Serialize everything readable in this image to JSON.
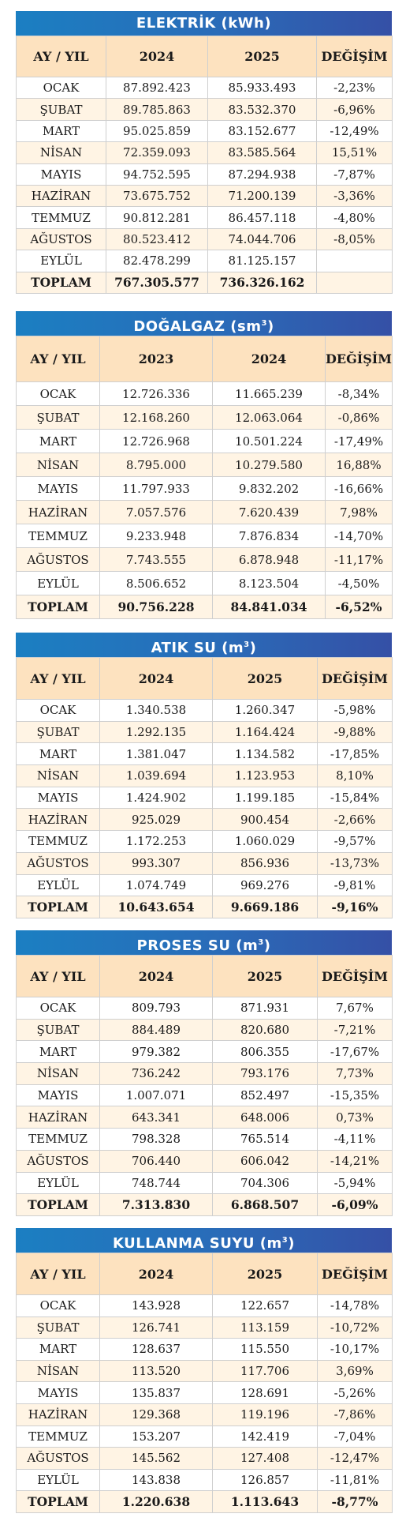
{
  "tables": [
    {
      "title": "ELEKTRİK (kWh)",
      "title_sup": "",
      "header": [
        "AY / YIL",
        "2024",
        "2025",
        "DEĞİŞİM"
      ],
      "rows": [
        [
          "OCAK",
          "87.892.423",
          "85.933.493",
          "-2,23%"
        ],
        [
          "ŞUBAT",
          "89.785.863",
          "83.532.370",
          "-6,96%"
        ],
        [
          "MART",
          "95.025.859",
          "83.152.677",
          "-12,49%"
        ],
        [
          "NİSAN",
          "72.359.093",
          "83.585.564",
          "15,51%"
        ],
        [
          "MAYIS",
          "94.752.595",
          "87.294.938",
          "-7,87%"
        ],
        [
          "HAZİRAN",
          "73.675.752",
          "71.200.139",
          "-3,36%"
        ],
        [
          "TEMMUZ",
          "90.812.281",
          "86.457.118",
          "-4,80%"
        ],
        [
          "AĞUSTOS",
          "80.523.412",
          "74.044.706",
          "-8,05%"
        ],
        [
          "EYLÜL",
          "82.478.299",
          "81.125.157",
          ""
        ]
      ],
      "total": [
        "TOPLAM",
        "767.305.577",
        "736.326.162",
        ""
      ]
    },
    {
      "title": "DOĞALGAZ (sm",
      "title_sup": "3",
      "title_end": ")",
      "header": [
        "AY / YIL",
        "2023",
        "2024",
        "DEĞİŞİM"
      ],
      "rows": [
        [
          "OCAK",
          "12.726.336",
          "11.665.239",
          "-8,34%"
        ],
        [
          "ŞUBAT",
          "12.168.260",
          "12.063.064",
          "-0,86%"
        ],
        [
          "MART",
          "12.726.968",
          "10.501.224",
          "-17,49%"
        ],
        [
          "NİSAN",
          "8.795.000",
          "10.279.580",
          "16,88%"
        ],
        [
          "MAYIS",
          "11.797.933",
          "9.832.202",
          "-16,66%"
        ],
        [
          "HAZİRAN",
          "7.057.576",
          "7.620.439",
          "7,98%"
        ],
        [
          "TEMMUZ",
          "9.233.948",
          "7.876.834",
          "-14,70%"
        ],
        [
          "AĞUSTOS",
          "7.743.555",
          "6.878.948",
          "-11,17%"
        ],
        [
          "EYLÜL",
          "8.506.652",
          "8.123.504",
          "-4,50%"
        ]
      ],
      "total": [
        "TOPLAM",
        "90.756.228",
        "84.841.034",
        "-6,52%"
      ]
    },
    {
      "title": "ATIK SU (m",
      "title_sup": "3",
      "title_end": ")",
      "header": [
        "AY / YIL",
        "2024",
        "2025",
        "DEĞİŞİM"
      ],
      "rows": [
        [
          "OCAK",
          "1.340.538",
          "1.260.347",
          "-5,98%"
        ],
        [
          "ŞUBAT",
          "1.292.135",
          "1.164.424",
          "-9,88%"
        ],
        [
          "MART",
          "1.381.047",
          "1.134.582",
          "-17,85%"
        ],
        [
          "NİSAN",
          "1.039.694",
          "1.123.953",
          "8,10%"
        ],
        [
          "MAYIS",
          "1.424.902",
          "1.199.185",
          "-15,84%"
        ],
        [
          "HAZİRAN",
          "925.029",
          "900.454",
          "-2,66%"
        ],
        [
          "TEMMUZ",
          "1.172.253",
          "1.060.029",
          "-9,57%"
        ],
        [
          "AĞUSTOS",
          "993.307",
          "856.936",
          "-13,73%"
        ],
        [
          "EYLÜL",
          "1.074.749",
          "969.276",
          "-9,81%"
        ]
      ],
      "total": [
        "TOPLAM",
        "10.643.654",
        "9.669.186",
        "-9,16%"
      ]
    },
    {
      "title": "PROSES SU (m",
      "title_sup": "3",
      "title_end": ")",
      "header": [
        "AY / YIL",
        "2024",
        "2025",
        "DEĞİŞİM"
      ],
      "rows": [
        [
          "OCAK",
          "809.793",
          "871.931",
          "7,67%"
        ],
        [
          "ŞUBAT",
          "884.489",
          "820.680",
          "-7,21%"
        ],
        [
          "MART",
          "979.382",
          "806.355",
          "-17,67%"
        ],
        [
          "NİSAN",
          "736.242",
          "793.176",
          "7,73%"
        ],
        [
          "MAYIS",
          "1.007.071",
          "852.497",
          "-15,35%"
        ],
        [
          "HAZİRAN",
          "643.341",
          "648.006",
          "0,73%"
        ],
        [
          "TEMMUZ",
          "798.328",
          "765.514",
          "-4,11%"
        ],
        [
          "AĞUSTOS",
          "706.440",
          "606.042",
          "-14,21%"
        ],
        [
          "EYLÜL",
          "748.744",
          "704.306",
          "-5,94%"
        ]
      ],
      "total": [
        "TOPLAM",
        "7.313.830",
        "6.868.507",
        "-6,09%"
      ]
    },
    {
      "title": "KULLANMA SUYU (m",
      "title_sup": "3",
      "title_end": ")",
      "header": [
        "AY / YIL",
        "2024",
        "2025",
        "DEĞİŞİM"
      ],
      "rows": [
        [
          "OCAK",
          "143.928",
          "122.657",
          "-14,78%"
        ],
        [
          "ŞUBAT",
          "126.741",
          "113.159",
          "-10,72%"
        ],
        [
          "MART",
          "128.637",
          "115.550",
          "-10,17%"
        ],
        [
          "NİSAN",
          "113.520",
          "117.706",
          "3,69%"
        ],
        [
          "MAYIS",
          "135.837",
          "128.691",
          "-5,26%"
        ],
        [
          "HAZİRAN",
          "129.368",
          "119.196",
          "-7,86%"
        ],
        [
          "TEMMUZ",
          "153.207",
          "142.419",
          "-7,04%"
        ],
        [
          "AĞUSTOS",
          "145.562",
          "127.408",
          "-12,47%"
        ],
        [
          "EYLÜL",
          "143.838",
          "126.857",
          "-11,81%"
        ]
      ],
      "total": [
        "TOPLAM",
        "1.220.638",
        "1.113.643",
        "-8,77%"
      ]
    }
  ]
}
